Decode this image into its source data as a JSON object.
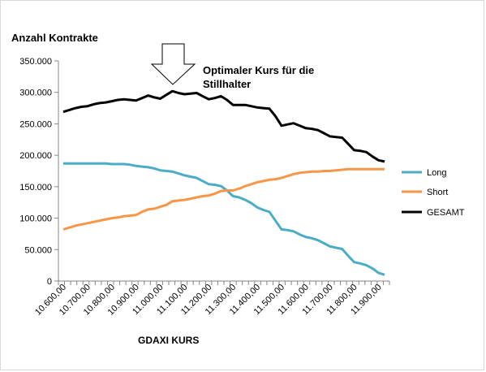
{
  "chart_data": {
    "type": "line",
    "title": "Anzahl Kontrakte",
    "xlabel": "GDAXI  KURS",
    "ylabel": "",
    "ylim": [
      0,
      350000
    ],
    "yticks": [
      "0",
      "50.000",
      "100.000",
      "150.000",
      "200.000",
      "250.000",
      "300.000",
      "350.000"
    ],
    "ytick_values": [
      0,
      50000,
      100000,
      150000,
      200000,
      250000,
      300000,
      350000
    ],
    "x": [
      10600,
      10625,
      10650,
      10675,
      10700,
      10725,
      10750,
      10775,
      10800,
      10825,
      10850,
      10875,
      10900,
      10925,
      10950,
      10975,
      11000,
      11025,
      11050,
      11075,
      11100,
      11125,
      11150,
      11175,
      11200,
      11225,
      11250,
      11275,
      11300,
      11325,
      11350,
      11375,
      11400,
      11425,
      11450,
      11475,
      11500,
      11525,
      11550,
      11575,
      11600,
      11625,
      11650,
      11675,
      11700,
      11725,
      11750,
      11775,
      11800,
      11825,
      11850,
      11875,
      11900,
      11925
    ],
    "xtick_labels": [
      "10.600,00",
      "10.700,00",
      "10.800,00",
      "10.900,00",
      "11.000,00",
      "11.100,00",
      "11.200,00",
      "11.300,00",
      "11.400,00",
      "11.500,00",
      "11.600,00",
      "11.700,00",
      "11.800,00",
      "11.900,00"
    ],
    "xtick_values": [
      10600,
      10700,
      10800,
      10900,
      11000,
      11100,
      11200,
      11300,
      11400,
      11500,
      11600,
      11700,
      11800,
      11900
    ],
    "series": [
      {
        "name": "Long",
        "color": "#4bacc6",
        "values": [
          187000,
          187000,
          187000,
          187000,
          187000,
          187000,
          187000,
          187000,
          186000,
          186000,
          186000,
          185000,
          183000,
          182000,
          181000,
          179000,
          176000,
          175000,
          174000,
          171000,
          168000,
          166000,
          164000,
          159000,
          154000,
          153000,
          151000,
          144000,
          135000,
          133000,
          129000,
          124000,
          117000,
          113000,
          110000,
          96000,
          82000,
          81000,
          79000,
          74000,
          70000,
          68000,
          65000,
          60000,
          55000,
          53000,
          51000,
          40000,
          30000,
          28000,
          25000,
          20000,
          13000,
          10000
        ]
      },
      {
        "name": "Short",
        "color": "#f79646",
        "values": [
          82000,
          85000,
          88000,
          90000,
          92000,
          94000,
          96000,
          98000,
          100000,
          101000,
          103000,
          104000,
          105000,
          110000,
          114000,
          115000,
          118000,
          121000,
          127000,
          128000,
          129000,
          131000,
          133000,
          135000,
          136000,
          139000,
          143000,
          144000,
          144000,
          147000,
          151000,
          154000,
          157000,
          159000,
          161000,
          162000,
          164000,
          167000,
          170000,
          172000,
          173000,
          174000,
          174000,
          175000,
          175000,
          176000,
          177000,
          178000,
          178000,
          178000,
          178000,
          178000,
          178000,
          178000
        ]
      },
      {
        "name": "GESAMT",
        "color": "#000000",
        "values": [
          269000,
          272000,
          275000,
          277000,
          278000,
          281000,
          283000,
          284000,
          286000,
          288000,
          289000,
          288000,
          287000,
          291000,
          295000,
          292000,
          290000,
          296000,
          302000,
          299000,
          297000,
          298000,
          299000,
          294000,
          289000,
          291000,
          294000,
          288000,
          280000,
          280000,
          280000,
          278000,
          276000,
          275000,
          274000,
          262000,
          247000,
          249000,
          251000,
          247000,
          243000,
          242000,
          240000,
          235000,
          230000,
          229000,
          228000,
          218000,
          208000,
          207000,
          205000,
          198000,
          192000,
          190000
        ]
      }
    ],
    "annotation": {
      "text_line1": "Optimaler Kurs für die",
      "text_line2": "Stillhalter"
    },
    "grid": false,
    "legend": "right"
  }
}
